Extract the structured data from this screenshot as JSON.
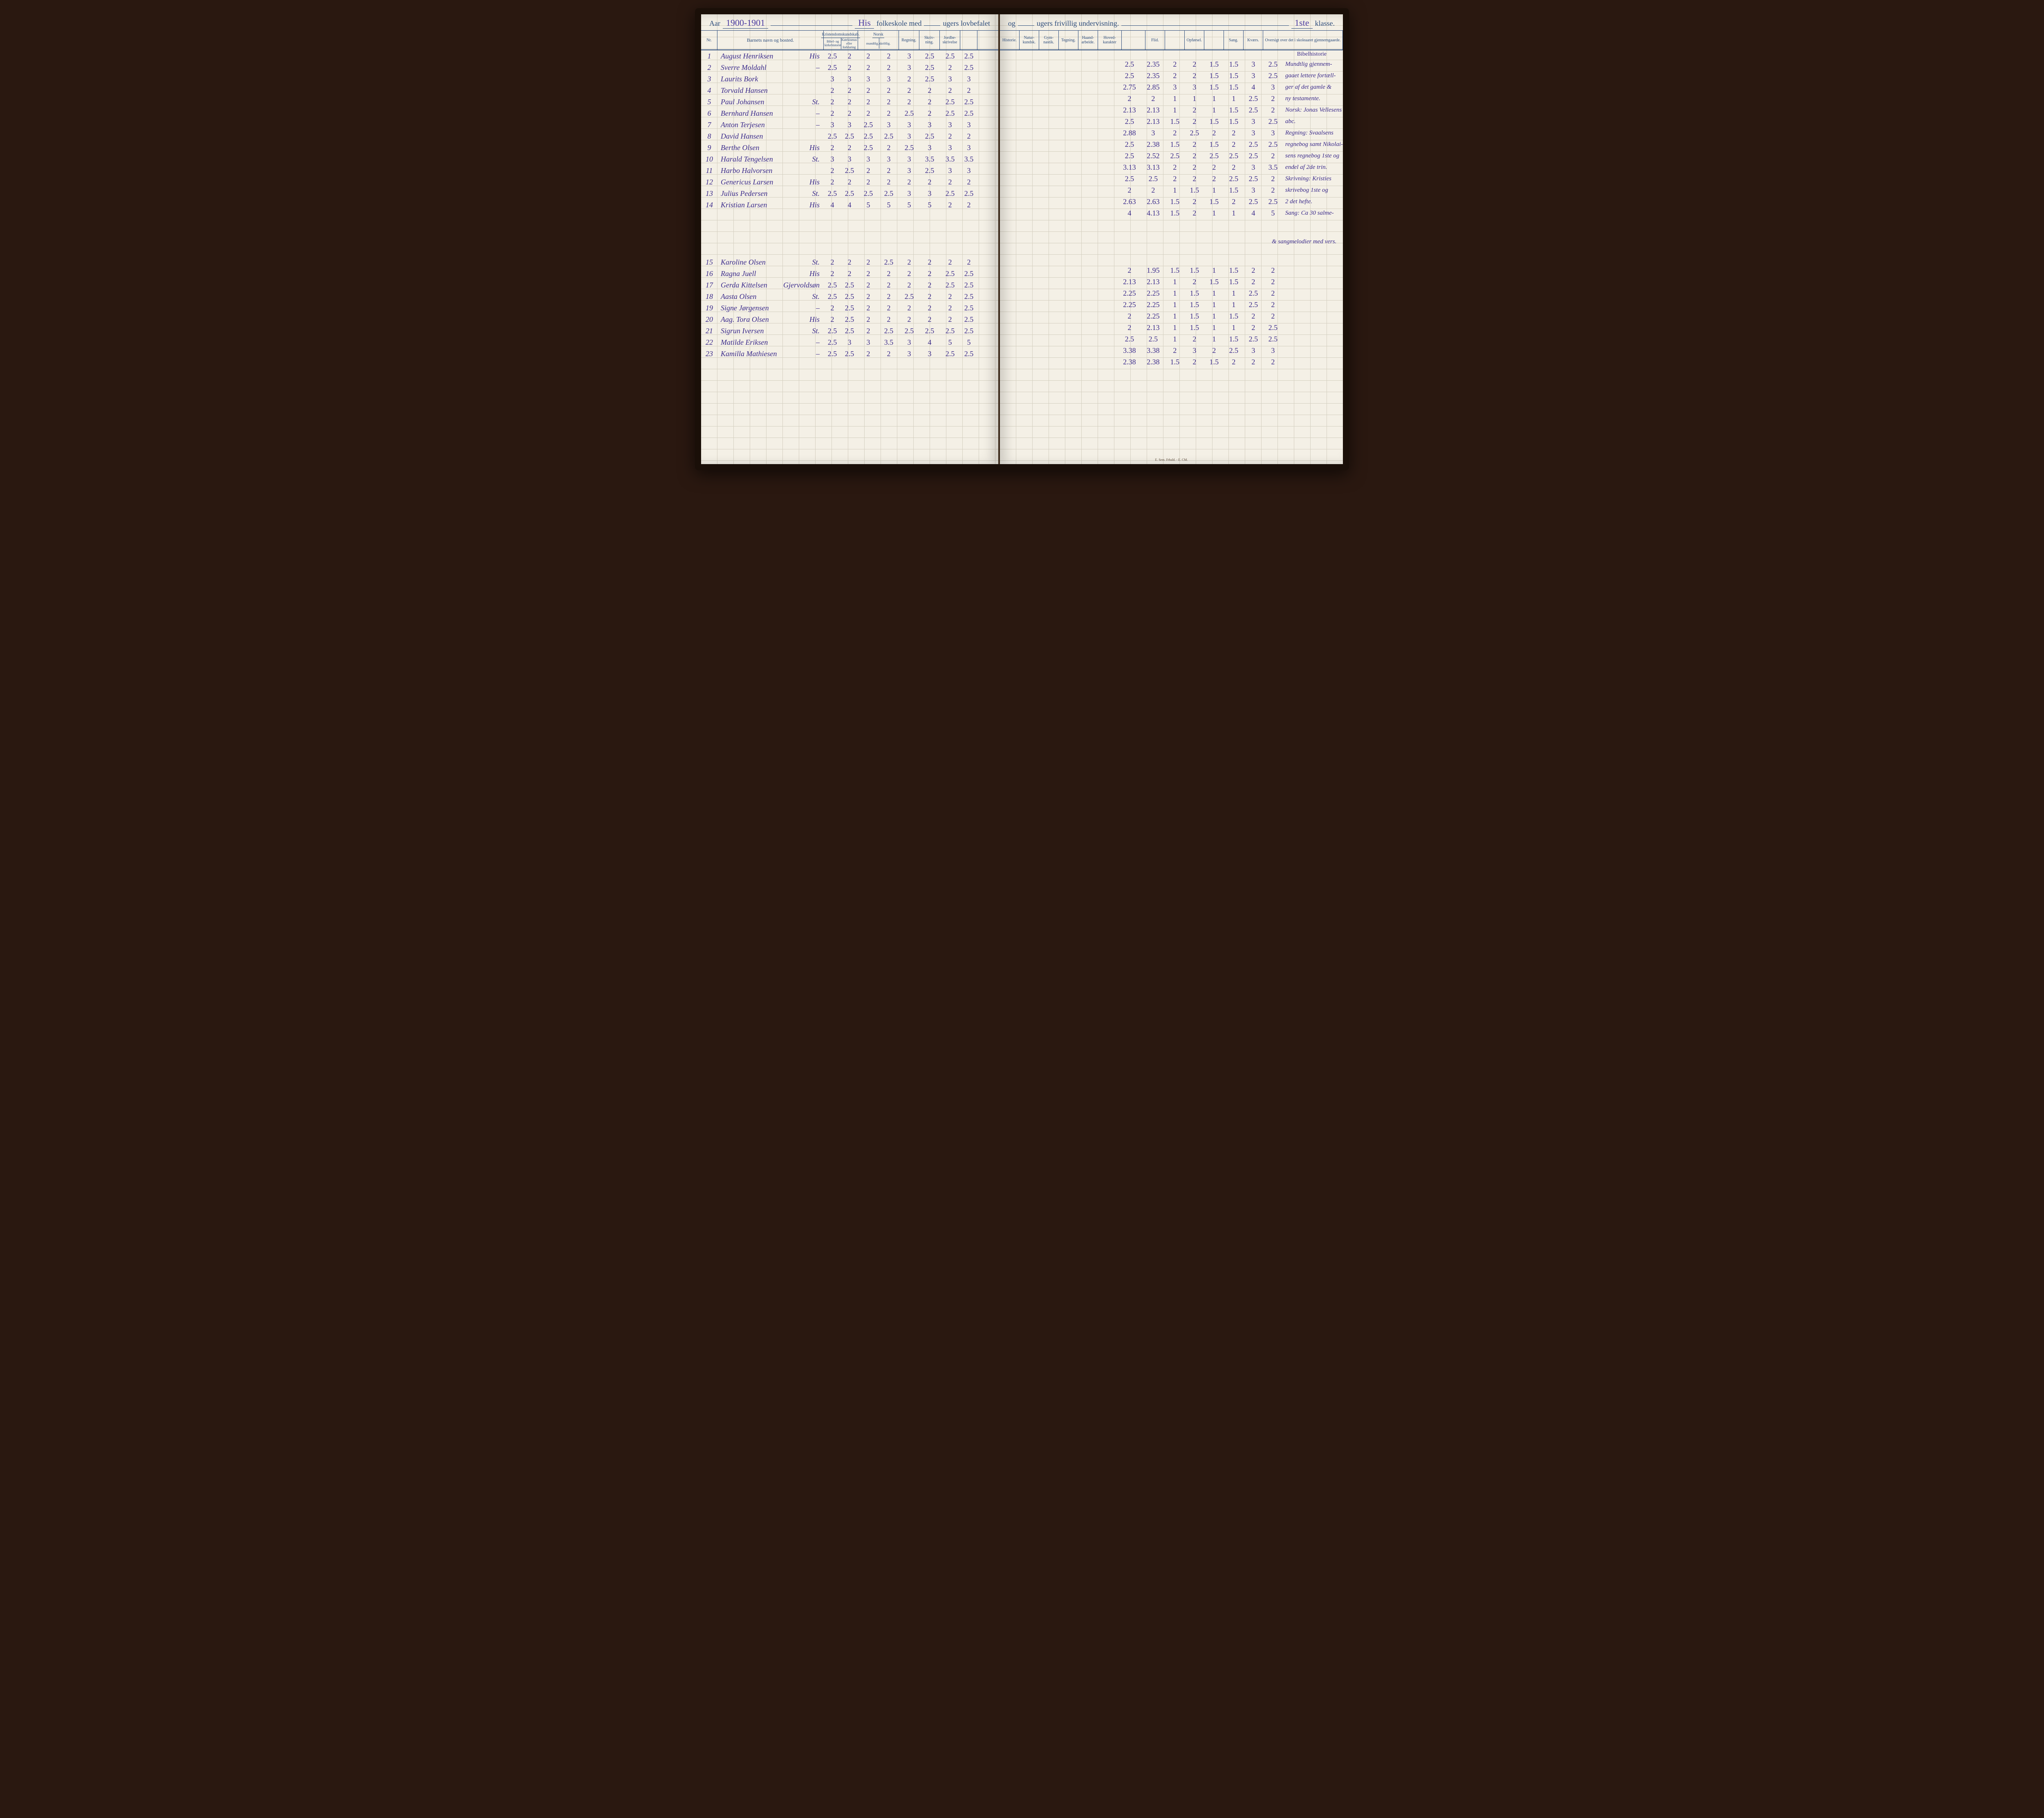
{
  "header": {
    "aar_label": "Aar",
    "aar_value": "1900-1901",
    "school_name": "His",
    "line1_mid": "folkeskole med",
    "ugers1": "",
    "line1_end": "ugers lovbefalet",
    "line2_start": "og",
    "ugers2": "",
    "line2_mid": "ugers frivillig undervisning.",
    "klasse_value": "1ste",
    "klasse_label": "klasse."
  },
  "columns_left": {
    "nr": "Nr.",
    "name": "Barnets navn og bosted.",
    "kristen_group": "Kristendomskundskab.",
    "kristen_sub1": "Bibel- og kirkehistorie",
    "kristen_sub2": "Katekismus eller forklaring",
    "norsk_group": "Norsk",
    "norsk_sub1": "mundtlig.",
    "norsk_sub2": "skriftlig.",
    "regning": "Regning.",
    "skrivning": "Skriv-\nning.",
    "jordbe": "Jordbe-\nskrivelse"
  },
  "columns_right": {
    "historie": "Historie.",
    "natur": "Natur-\nkundsk.",
    "gym": "Gym-\nnastik.",
    "tegning": "Tegning.",
    "haand": "Haand-\narbeide.",
    "hoved": "Hoved-\nkarakter",
    "flid": "Flid.",
    "opforsel": "Opførsel.",
    "sang": "Sang.",
    "kvaer": "Kværs.",
    "oversigt": "Oversigt over det i\nskoleaaret gjennemgaaede."
  },
  "rows_left": [
    {
      "nr": "1",
      "name": "August Henriksen",
      "place": "His",
      "k1": "2.5",
      "k2": "2",
      "n1": "2",
      "n2": "2",
      "reg": "3",
      "sk": "2.5",
      "jb": "2.5",
      "ex": "2.5"
    },
    {
      "nr": "2",
      "name": "Sverre Moldahl",
      "place": "–",
      "k1": "2.5",
      "k2": "2",
      "n1": "2",
      "n2": "2",
      "reg": "3",
      "sk": "2.5",
      "jb": "2",
      "ex": "2.5"
    },
    {
      "nr": "3",
      "name": "Laurits Bork",
      "place": "",
      "k1": "3",
      "k2": "3",
      "n1": "3",
      "n2": "3",
      "reg": "2",
      "sk": "2.5",
      "jb": "3",
      "ex": "3"
    },
    {
      "nr": "4",
      "name": "Torvald Hansen",
      "place": "",
      "k1": "2",
      "k2": "2",
      "n1": "2",
      "n2": "2",
      "reg": "2",
      "sk": "2",
      "jb": "2",
      "ex": "2"
    },
    {
      "nr": "5",
      "name": "Paul Johansen",
      "place": "St.",
      "k1": "2",
      "k2": "2",
      "n1": "2",
      "n2": "2",
      "reg": "2",
      "sk": "2",
      "jb": "2.5",
      "ex": "2.5"
    },
    {
      "nr": "6",
      "name": "Bernhard Hansen",
      "place": "–",
      "k1": "2",
      "k2": "2",
      "n1": "2",
      "n2": "2",
      "reg": "2.5",
      "sk": "2",
      "jb": "2.5",
      "ex": "2.5"
    },
    {
      "nr": "7",
      "name": "Anton Terjesen",
      "place": "–",
      "k1": "3",
      "k2": "3",
      "n1": "2.5",
      "n2": "3",
      "reg": "3",
      "sk": "3",
      "jb": "3",
      "ex": "3"
    },
    {
      "nr": "8",
      "name": "David Hansen",
      "place": "",
      "k1": "2.5",
      "k2": "2.5",
      "n1": "2.5",
      "n2": "2.5",
      "reg": "3",
      "sk": "2.5",
      "jb": "2",
      "ex": "2"
    },
    {
      "nr": "9",
      "name": "Berthe Olsen",
      "place": "His",
      "k1": "2",
      "k2": "2",
      "n1": "2.5",
      "n2": "2",
      "reg": "2.5",
      "sk": "3",
      "jb": "3",
      "ex": "3"
    },
    {
      "nr": "10",
      "name": "Harald Tengelsen",
      "place": "St.",
      "k1": "3",
      "k2": "3",
      "n1": "3",
      "n2": "3",
      "reg": "3",
      "sk": "3.5",
      "jb": "3.5",
      "ex": "3.5"
    },
    {
      "nr": "11",
      "name": "Harbo Halvorsen",
      "place": "",
      "k1": "2",
      "k2": "2.5",
      "n1": "2",
      "n2": "2",
      "reg": "3",
      "sk": "2.5",
      "jb": "3",
      "ex": "3"
    },
    {
      "nr": "12",
      "name": "Genericus Larsen",
      "place": "His",
      "k1": "2",
      "k2": "2",
      "n1": "2",
      "n2": "2",
      "reg": "2",
      "sk": "2",
      "jb": "2",
      "ex": "2"
    },
    {
      "nr": "13",
      "name": "Julius Pedersen",
      "place": "St.",
      "k1": "2.5",
      "k2": "2.5",
      "n1": "2.5",
      "n2": "2.5",
      "reg": "3",
      "sk": "3",
      "jb": "2.5",
      "ex": "2.5"
    },
    {
      "nr": "14",
      "name": "Kristian Larsen",
      "place": "His",
      "k1": "4",
      "k2": "4",
      "n1": "5",
      "n2": "5",
      "reg": "5",
      "sk": "5",
      "jb": "2",
      "ex": "2"
    },
    {
      "gap": true
    },
    {
      "nr": "15",
      "name": "Karoline Olsen",
      "place": "St.",
      "k1": "2",
      "k2": "2",
      "n1": "2",
      "n2": "2.5",
      "reg": "2",
      "sk": "2",
      "jb": "2",
      "ex": "2"
    },
    {
      "nr": "16",
      "name": "Ragna Juell",
      "place": "His",
      "k1": "2",
      "k2": "2",
      "n1": "2",
      "n2": "2",
      "reg": "2",
      "sk": "2",
      "jb": "2.5",
      "ex": "2.5"
    },
    {
      "nr": "17",
      "name": "Gerda Kittelsen",
      "place": "Gjervoldsøn",
      "k1": "2.5",
      "k2": "2.5",
      "n1": "2",
      "n2": "2",
      "reg": "2",
      "sk": "2",
      "jb": "2.5",
      "ex": "2.5"
    },
    {
      "nr": "18",
      "name": "Aasta Olsen",
      "place": "St.",
      "k1": "2.5",
      "k2": "2.5",
      "n1": "2",
      "n2": "2",
      "reg": "2.5",
      "sk": "2",
      "jb": "2",
      "ex": "2.5"
    },
    {
      "nr": "19",
      "name": "Signe Jørgensen",
      "place": "–",
      "k1": "2",
      "k2": "2.5",
      "n1": "2",
      "n2": "2",
      "reg": "2",
      "sk": "2",
      "jb": "2",
      "ex": "2.5"
    },
    {
      "nr": "20",
      "name": "Aag. Tora Olsen",
      "place": "His",
      "k1": "2",
      "k2": "2.5",
      "n1": "2",
      "n2": "2",
      "reg": "2",
      "sk": "2",
      "jb": "2",
      "ex": "2.5"
    },
    {
      "nr": "21",
      "name": "Sigrun Iversen",
      "place": "St.",
      "k1": "2.5",
      "k2": "2.5",
      "n1": "2",
      "n2": "2.5",
      "reg": "2.5",
      "sk": "2.5",
      "jb": "2.5",
      "ex": "2.5"
    },
    {
      "nr": "22",
      "name": "Matilde Eriksen",
      "place": "–",
      "k1": "2.5",
      "k2": "3",
      "n1": "3",
      "n2": "3.5",
      "reg": "3",
      "sk": "4",
      "jb": "5",
      "ex": "5"
    },
    {
      "nr": "23",
      "name": "Kamilla Mathiesen",
      "place": "–",
      "k1": "2.5",
      "k2": "2.5",
      "n1": "2",
      "n2": "2",
      "reg": "3",
      "sk": "3",
      "jb": "2.5",
      "ex": "2.5"
    }
  ],
  "rows_right": [
    {
      "hk": "2.5",
      "hk2": "2.35",
      "fl": "2",
      "fl2": "2",
      "op": "1.5",
      "op2": "1.5",
      "sa": "3",
      "kv": "2.5",
      "note": "Mundtlig gjennem-"
    },
    {
      "hk": "2.5",
      "hk2": "2.35",
      "fl": "2",
      "fl2": "2",
      "op": "1.5",
      "op2": "1.5",
      "sa": "3",
      "kv": "2.5",
      "note": "gaaet lettere fortæll-"
    },
    {
      "hk": "2.75",
      "hk2": "2.85",
      "fl": "3",
      "fl2": "3",
      "op": "1.5",
      "op2": "1.5",
      "sa": "4",
      "kv": "3",
      "note": "ger af det gamle &"
    },
    {
      "hk": "2",
      "hk2": "2",
      "fl": "1",
      "fl2": "1",
      "op": "1",
      "op2": "1",
      "sa": "2.5",
      "kv": "2",
      "note": "ny testamente."
    },
    {
      "hk": "2.13",
      "hk2": "2.13",
      "fl": "1",
      "fl2": "2",
      "op": "1",
      "op2": "1.5",
      "sa": "2.5",
      "kv": "2",
      "note": "Norsk: Jonas Vellesens"
    },
    {
      "hk": "2.5",
      "hk2": "2.13",
      "fl": "1.5",
      "fl2": "2",
      "op": "1.5",
      "op2": "1.5",
      "sa": "3",
      "kv": "2.5",
      "note": "abc."
    },
    {
      "hk": "2.88",
      "hk2": "3",
      "fl": "2",
      "fl2": "2.5",
      "op": "2",
      "op2": "2",
      "sa": "3",
      "kv": "3",
      "note": "Regning: Svaalsens"
    },
    {
      "hk": "2.5",
      "hk2": "2.38",
      "fl": "1.5",
      "fl2": "2",
      "op": "1.5",
      "op2": "2",
      "sa": "2.5",
      "kv": "2.5",
      "note": "regnebog samt Nikolai-"
    },
    {
      "hk": "2.5",
      "hk2": "2.52",
      "fl": "2.5",
      "fl2": "2",
      "op": "2.5",
      "op2": "2.5",
      "sa": "2.5",
      "kv": "2",
      "note": "sens regnebog 1ste og"
    },
    {
      "hk": "3.13",
      "hk2": "3.13",
      "fl": "2",
      "fl2": "2",
      "op": "2",
      "op2": "2",
      "sa": "3",
      "kv": "3.5",
      "note": "endel af 2de trin."
    },
    {
      "hk": "2.5",
      "hk2": "2.5",
      "fl": "2",
      "fl2": "2",
      "op": "2",
      "op2": "2.5",
      "sa": "2.5",
      "kv": "2",
      "note": "Skrivning: Kristies"
    },
    {
      "hk": "2",
      "hk2": "2",
      "fl": "1",
      "fl2": "1.5",
      "op": "1",
      "op2": "1.5",
      "sa": "3",
      "kv": "2",
      "note": "skrivebog 1ste og"
    },
    {
      "hk": "2.63",
      "hk2": "2.63",
      "fl": "1.5",
      "fl2": "2",
      "op": "1.5",
      "op2": "2",
      "sa": "2.5",
      "kv": "2.5",
      "note": "2 det hefte."
    },
    {
      "hk": "4",
      "hk2": "4.13",
      "fl": "1.5",
      "fl2": "2",
      "op": "1",
      "op2": "1",
      "sa": "4",
      "kv": "5",
      "note": "Sang: Ca 30 salme-"
    },
    {
      "gap": true,
      "note": "& sangmelodier med vers."
    },
    {
      "hk": "2",
      "hk2": "1.95",
      "fl": "1.5",
      "fl2": "1.5",
      "op": "1",
      "op2": "1.5",
      "sa": "2",
      "kv": "2",
      "note": ""
    },
    {
      "hk": "2.13",
      "hk2": "2.13",
      "fl": "1",
      "fl2": "2",
      "op": "1.5",
      "op2": "1.5",
      "sa": "2",
      "kv": "2",
      "note": ""
    },
    {
      "hk": "2.25",
      "hk2": "2.25",
      "fl": "1",
      "fl2": "1.5",
      "op": "1",
      "op2": "1",
      "sa": "2.5",
      "kv": "2",
      "note": ""
    },
    {
      "hk": "2.25",
      "hk2": "2.25",
      "fl": "1",
      "fl2": "1.5",
      "op": "1",
      "op2": "1",
      "sa": "2.5",
      "kv": "2",
      "note": ""
    },
    {
      "hk": "2",
      "hk2": "2.25",
      "fl": "1",
      "fl2": "1.5",
      "op": "1",
      "op2": "1.5",
      "sa": "2",
      "kv": "2",
      "note": ""
    },
    {
      "hk": "2",
      "hk2": "2.13",
      "fl": "1",
      "fl2": "1.5",
      "op": "1",
      "op2": "1",
      "sa": "2",
      "kv": "2.5",
      "note": ""
    },
    {
      "hk": "2.5",
      "hk2": "2.5",
      "fl": "1",
      "fl2": "2",
      "op": "1",
      "op2": "1.5",
      "sa": "2.5",
      "kv": "2.5",
      "note": ""
    },
    {
      "hk": "3.38",
      "hk2": "3.38",
      "fl": "2",
      "fl2": "3",
      "op": "2",
      "op2": "2.5",
      "sa": "3",
      "kv": "3",
      "note": ""
    },
    {
      "hk": "2.38",
      "hk2": "2.38",
      "fl": "1.5",
      "fl2": "2",
      "op": "1.5",
      "op2": "2",
      "sa": "2",
      "kv": "2",
      "note": ""
    }
  ],
  "footer": "E. Sem. Frhald. - E. CM.",
  "notes_header": "Bibelhistorie",
  "style": {
    "ink_color": "#3a2a8a",
    "printed_color": "#2a4a7a",
    "paper_color": "#f4f0e6",
    "grid_color": "#d4cfc0",
    "binding_color": "#1a0f08"
  }
}
